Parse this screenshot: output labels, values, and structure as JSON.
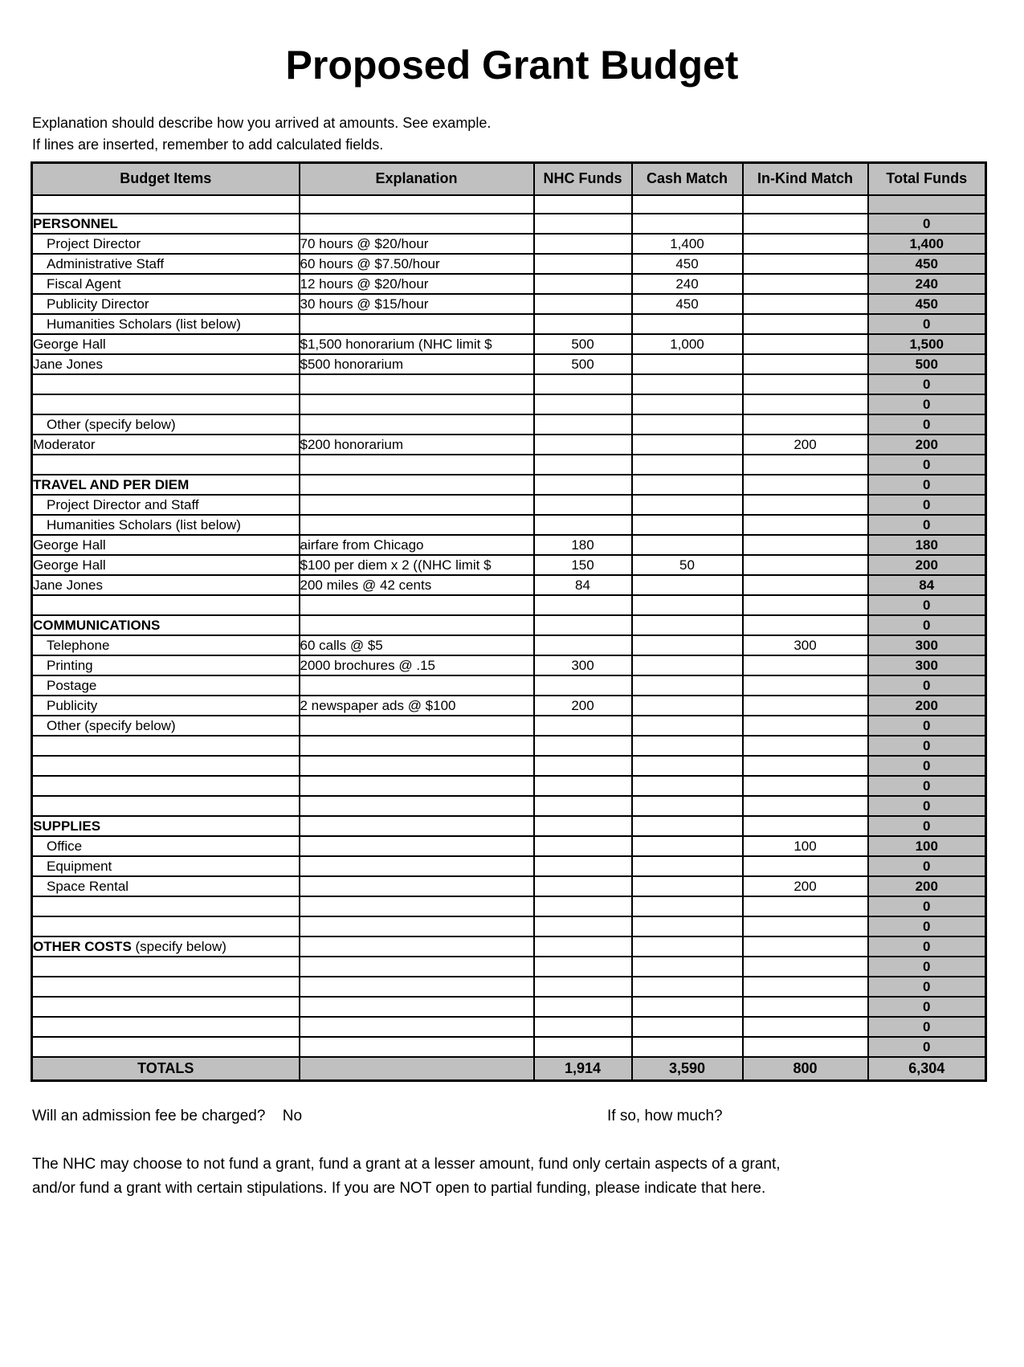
{
  "page": {
    "title": "Proposed Grant Budget",
    "intro_lines": [
      "Explanation should describe how you arrived at amounts.  See example.",
      "If lines are inserted, remember to add calculated fields."
    ]
  },
  "colors": {
    "table_header_bg": "#c0c0c0",
    "total_column_bg": "#c0c0c0",
    "totals_row_bg": "#c0c0c0",
    "border": "#000000"
  },
  "table": {
    "headers": [
      "Budget Items",
      "Explanation",
      "NHC Funds",
      "Cash Match",
      "In-Kind Match",
      "Total Funds"
    ],
    "rows": [
      {
        "item": "",
        "expl": "",
        "nhc": "",
        "cash": "",
        "inkind": "",
        "total": ""
      },
      {
        "item": "PERSONNEL",
        "bold": true,
        "total": "0"
      },
      {
        "item": "Project Director",
        "indent": true,
        "expl": "70 hours @ $20/hour",
        "cash": "1,400",
        "total": "1,400"
      },
      {
        "item": "Administrative Staff",
        "indent": true,
        "expl": "60 hours @ $7.50/hour",
        "cash": "450",
        "total": "450"
      },
      {
        "item": "Fiscal Agent",
        "indent": true,
        "expl": "12 hours @ $20/hour",
        "cash": "240",
        "total": "240"
      },
      {
        "item": "Publicity Director",
        "indent": true,
        "expl": "30 hours @ $15/hour",
        "cash": "450",
        "total": "450"
      },
      {
        "item": "Humanities Scholars (list below)",
        "indent": true,
        "total": "0"
      },
      {
        "item": "George Hall",
        "expl": "$1,500 honorarium (NHC limit $",
        "nhc": "500",
        "cash": "1,000",
        "total": "1,500"
      },
      {
        "item": "Jane Jones",
        "expl": "$500 honorarium",
        "nhc": "500",
        "total": "500"
      },
      {
        "total": "0"
      },
      {
        "total": "0"
      },
      {
        "item": "Other (specify below)",
        "indent": true,
        "total": "0"
      },
      {
        "item": "Moderator",
        "expl": "$200 honorarium",
        "inkind": "200",
        "total": "200"
      },
      {
        "total": "0"
      },
      {
        "item": "TRAVEL AND PER DIEM",
        "bold": true,
        "total": "0"
      },
      {
        "item": "Project Director and Staff",
        "indent": true,
        "total": "0"
      },
      {
        "item": "Humanities Scholars (list below)",
        "indent": true,
        "total": "0"
      },
      {
        "item": "George Hall",
        "expl": "airfare from Chicago",
        "nhc": "180",
        "total": "180"
      },
      {
        "item": "George Hall",
        "expl": "$100 per diem x 2 ((NHC limit $",
        "nhc": "150",
        "cash": "50",
        "total": "200"
      },
      {
        "item": "Jane Jones",
        "expl": "200 miles @ 42 cents",
        "nhc": "84",
        "total": "84"
      },
      {
        "total": "0"
      },
      {
        "item": "COMMUNICATIONS",
        "bold": true,
        "total": "0"
      },
      {
        "item": "Telephone",
        "indent": true,
        "expl": "60 calls @ $5",
        "inkind": "300",
        "total": "300"
      },
      {
        "item": "Printing",
        "indent": true,
        "expl": "2000 brochures @ .15",
        "nhc": "300",
        "total": "300"
      },
      {
        "item": "Postage",
        "indent": true,
        "total": "0"
      },
      {
        "item": "Publicity",
        "indent": true,
        "expl": "2 newspaper ads @ $100",
        "nhc": "200",
        "total": "200"
      },
      {
        "item": "Other (specify below)",
        "indent": true,
        "total": "0"
      },
      {
        "total": "0"
      },
      {
        "total": "0"
      },
      {
        "total": "0"
      },
      {
        "total": "0"
      },
      {
        "item": "SUPPLIES",
        "bold": true,
        "total": "0"
      },
      {
        "item": "Office",
        "indent": true,
        "inkind": "100",
        "total": "100"
      },
      {
        "item": "Equipment",
        "indent": true,
        "total": "0"
      },
      {
        "item": "Space Rental",
        "indent": true,
        "inkind": "200",
        "total": "200"
      },
      {
        "total": "0"
      },
      {
        "total": "0"
      },
      {
        "item": "OTHER COSTS",
        "bold": true,
        "suffix": " (specify below)",
        "total": "0"
      },
      {
        "total": "0"
      },
      {
        "total": "0"
      },
      {
        "total": "0"
      },
      {
        "total": "0"
      },
      {
        "total": "0"
      }
    ],
    "totals": {
      "label": "TOTALS",
      "explanation": "",
      "nhc": "1,914",
      "cash": "3,590",
      "inkind": "800",
      "total": "6,304"
    }
  },
  "footer": {
    "admission_question": "Will an admission fee be charged?",
    "admission_answer": "No",
    "how_much_label": "If so, how much?",
    "funding_note_line1": "The NHC may choose to not fund a grant, fund a grant at a lesser amount, fund only certain aspects of a grant,",
    "funding_note_line2": "and/or fund a grant with certain stipulations.  If you are NOT open to partial funding, please indicate that here."
  }
}
